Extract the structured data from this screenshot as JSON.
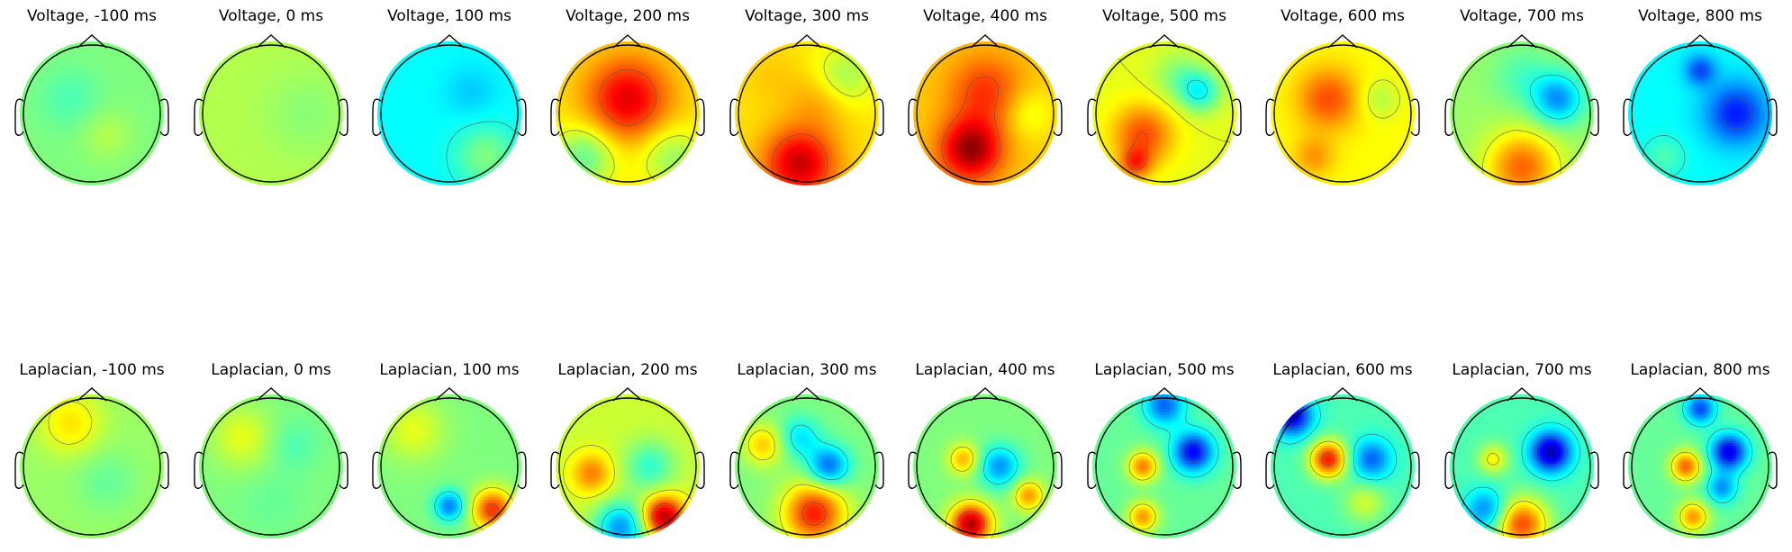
{
  "chart_data": {
    "type": "heatmap",
    "colormap": "jet",
    "value_range": [
      -1,
      1
    ],
    "contour_levels": [
      -0.6,
      -0.2,
      0.2,
      0.6
    ],
    "rows": [
      {
        "name": "Voltage",
        "maps": [
          {
            "title": "Voltage, -100 ms",
            "base": 0.0,
            "blobs": [
              [
                0.2,
                0.3,
                0.25,
                0.1
              ],
              [
                -0.3,
                -0.2,
                0.3,
                -0.1
              ]
            ]
          },
          {
            "title": "Voltage, 0 ms",
            "base": 0.1,
            "blobs": [
              [
                0.5,
                0.0,
                0.4,
                -0.08
              ]
            ]
          },
          {
            "title": "Voltage, 100 ms",
            "base": -0.25,
            "blobs": [
              [
                0.5,
                0.6,
                0.3,
                0.25
              ],
              [
                0.3,
                -0.3,
                0.25,
                -0.1
              ]
            ]
          },
          {
            "title": "Voltage, 200 ms",
            "base": 0.3,
            "blobs": [
              [
                0.0,
                -0.2,
                0.4,
                0.5
              ],
              [
                -0.6,
                0.6,
                0.3,
                -0.35
              ],
              [
                0.6,
                0.6,
                0.3,
                -0.25
              ]
            ]
          },
          {
            "title": "Voltage, 300 ms",
            "base": 0.3,
            "blobs": [
              [
                -0.1,
                0.7,
                0.35,
                0.55
              ],
              [
                0.2,
                -0.2,
                0.3,
                0.15
              ],
              [
                0.5,
                -0.5,
                0.3,
                -0.25
              ],
              [
                -0.5,
                -0.5,
                0.3,
                0.05
              ]
            ]
          },
          {
            "title": "Voltage, 400 ms",
            "base": 0.35,
            "blobs": [
              [
                -0.2,
                0.5,
                0.3,
                0.6
              ],
              [
                0.0,
                -0.3,
                0.35,
                0.3
              ],
              [
                0.6,
                0.0,
                0.25,
                -0.15
              ]
            ]
          },
          {
            "title": "Voltage, 500 ms",
            "base": 0.2,
            "blobs": [
              [
                -0.3,
                0.3,
                0.3,
                0.4
              ],
              [
                -0.4,
                0.7,
                0.15,
                0.35
              ],
              [
                0.5,
                -0.3,
                0.2,
                -0.4
              ],
              [
                0.2,
                -0.5,
                0.25,
                -0.2
              ]
            ]
          },
          {
            "title": "Voltage, 600 ms",
            "base": 0.25,
            "blobs": [
              [
                -0.2,
                -0.2,
                0.3,
                0.35
              ],
              [
                -0.4,
                0.6,
                0.2,
                0.2
              ],
              [
                0.5,
                -0.2,
                0.2,
                -0.15
              ]
            ]
          },
          {
            "title": "Voltage, 700 ms",
            "base": 0.05,
            "blobs": [
              [
                0.0,
                0.75,
                0.35,
                0.5
              ],
              [
                0.5,
                -0.2,
                0.25,
                -0.5
              ],
              [
                0.0,
                -0.5,
                0.3,
                -0.15
              ]
            ]
          },
          {
            "title": "Voltage, 800 ms",
            "base": -0.25,
            "blobs": [
              [
                0.5,
                0.0,
                0.3,
                -0.45
              ],
              [
                0.0,
                -0.6,
                0.15,
                -0.35
              ],
              [
                -0.5,
                0.6,
                0.2,
                0.15
              ]
            ]
          }
        ]
      },
      {
        "name": "Laplacian",
        "maps": [
          {
            "title": "Laplacian, -100 ms",
            "base": 0.05,
            "blobs": [
              [
                -0.3,
                -0.6,
                0.3,
                0.25
              ],
              [
                0.2,
                0.2,
                0.3,
                -0.1
              ]
            ]
          },
          {
            "title": "Laplacian, 0 ms",
            "base": 0.0,
            "blobs": [
              [
                -0.4,
                -0.4,
                0.3,
                0.2
              ],
              [
                0.3,
                -0.3,
                0.25,
                -0.1
              ],
              [
                0.0,
                0.5,
                0.3,
                -0.05
              ]
            ]
          },
          {
            "title": "Laplacian, 100 ms",
            "base": 0.0,
            "blobs": [
              [
                0.0,
                0.55,
                0.15,
                -0.5
              ],
              [
                0.6,
                0.6,
                0.2,
                0.65
              ],
              [
                -0.5,
                -0.5,
                0.3,
                0.2
              ]
            ]
          },
          {
            "title": "Laplacian, 200 ms",
            "base": 0.15,
            "blobs": [
              [
                0.5,
                0.7,
                0.2,
                0.75
              ],
              [
                -0.5,
                0.1,
                0.2,
                0.35
              ],
              [
                0.3,
                0.0,
                0.25,
                -0.3
              ],
              [
                -0.1,
                0.85,
                0.25,
                -0.6
              ]
            ]
          },
          {
            "title": "Laplacian, 300 ms",
            "base": 0.0,
            "blobs": [
              [
                0.3,
                0.0,
                0.2,
                -0.55
              ],
              [
                0.1,
                0.65,
                0.3,
                0.7
              ],
              [
                -0.6,
                -0.3,
                0.2,
                0.35
              ],
              [
                -0.1,
                -0.4,
                0.2,
                -0.3
              ]
            ]
          },
          {
            "title": "Laplacian, 400 ms",
            "base": 0.0,
            "blobs": [
              [
                -0.2,
                0.8,
                0.2,
                0.9
              ],
              [
                0.2,
                0.0,
                0.2,
                -0.45
              ],
              [
                -0.3,
                -0.1,
                0.15,
                0.4
              ],
              [
                0.6,
                0.4,
                0.15,
                0.45
              ]
            ]
          },
          {
            "title": "Laplacian, 500 ms",
            "base": -0.05,
            "blobs": [
              [
                0.4,
                -0.2,
                0.2,
                -0.7
              ],
              [
                -0.3,
                0.0,
                0.15,
                0.55
              ],
              [
                -0.3,
                0.7,
                0.15,
                0.5
              ],
              [
                0.0,
                -0.85,
                0.2,
                -0.5
              ]
            ]
          },
          {
            "title": "Laplacian, 600 ms",
            "base": -0.1,
            "blobs": [
              [
                -0.2,
                -0.1,
                0.18,
                0.8
              ],
              [
                0.4,
                -0.1,
                0.2,
                -0.45
              ],
              [
                -0.7,
                -0.7,
                0.2,
                -0.7
              ],
              [
                0.3,
                0.5,
                0.2,
                0.25
              ]
            ]
          },
          {
            "title": "Laplacian, 700 ms",
            "base": -0.1,
            "blobs": [
              [
                0.4,
                -0.2,
                0.2,
                -0.8
              ],
              [
                0.0,
                0.8,
                0.25,
                0.7
              ],
              [
                -0.4,
                -0.1,
                0.15,
                0.35
              ],
              [
                -0.5,
                0.6,
                0.2,
                -0.4
              ]
            ]
          },
          {
            "title": "Laplacian, 800 ms",
            "base": -0.05,
            "blobs": [
              [
                0.4,
                -0.2,
                0.18,
                -0.75
              ],
              [
                -0.2,
                0.0,
                0.15,
                0.6
              ],
              [
                0.0,
                -0.8,
                0.15,
                -0.55
              ],
              [
                -0.1,
                0.7,
                0.15,
                0.5
              ],
              [
                0.3,
                0.3,
                0.15,
                -0.4
              ]
            ]
          }
        ]
      }
    ]
  }
}
